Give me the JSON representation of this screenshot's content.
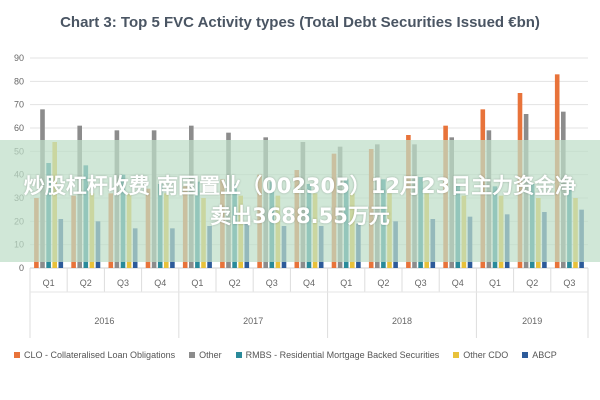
{
  "overlay": {
    "headline": "炒股杠杆收费 南国置业（002305）12月23日主力资金净卖出3688.55万元"
  },
  "chart_data": {
    "type": "bar",
    "title": "Chart 3: Top 5 FVC Activity types (Total Debt Securities Issued €bn)",
    "ylim": [
      0,
      90
    ],
    "yticks": [
      0,
      10,
      20,
      30,
      40,
      50,
      60,
      70,
      80,
      90
    ],
    "grid": true,
    "legend_position": "bottom",
    "categories": [
      "Q1",
      "Q2",
      "Q3",
      "Q4",
      "Q1",
      "Q2",
      "Q3",
      "Q4",
      "Q1",
      "Q2",
      "Q3",
      "Q4",
      "Q1",
      "Q2",
      "Q3"
    ],
    "year_groups": [
      {
        "label": "2016",
        "count": 4
      },
      {
        "label": "2017",
        "count": 4
      },
      {
        "label": "2018",
        "count": 4
      },
      {
        "label": "2019",
        "count": 3
      }
    ],
    "series": [
      {
        "name": "CLO - Collateralised Loan Obligations",
        "color": "#e8733a",
        "values": [
          30,
          31,
          32,
          34,
          35,
          38,
          40,
          42,
          49,
          51,
          57,
          61,
          68,
          75,
          83
        ]
      },
      {
        "name": "Other",
        "color": "#8c8c8c",
        "values": [
          68,
          61,
          59,
          59,
          61,
          58,
          56,
          54,
          52,
          53,
          53,
          56,
          59,
          66,
          67
        ]
      },
      {
        "name": "RMBS - Residential Mortgage Backed Securities",
        "color": "#2a8a9a",
        "values": [
          45,
          44,
          40,
          36,
          37,
          36,
          37,
          36,
          38,
          38,
          39,
          36,
          35,
          36,
          35
        ]
      },
      {
        "name": "Other CDO",
        "color": "#e8c13a",
        "values": [
          54,
          32,
          32,
          32,
          30,
          31,
          31,
          32,
          32,
          32,
          32,
          31,
          31,
          30,
          30
        ]
      },
      {
        "name": "ABCP",
        "color": "#2d5b9a",
        "values": [
          21,
          20,
          17,
          17,
          18,
          19,
          18,
          18,
          19,
          20,
          21,
          22,
          23,
          24,
          25
        ]
      }
    ]
  }
}
